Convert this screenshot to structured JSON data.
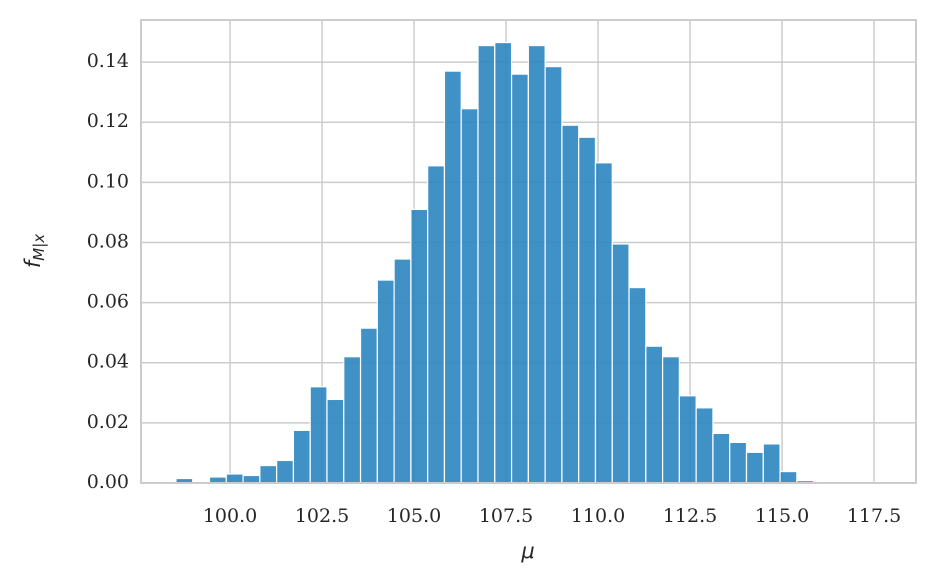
{
  "chart_data": {
    "type": "histogram",
    "xlabel": "μ",
    "ylabel": "f",
    "ylabel_sub": "M|x",
    "bins": [
      98.53,
      98.986,
      99.442,
      99.898,
      100.354,
      100.81,
      101.266,
      101.722,
      102.178,
      102.634,
      103.09,
      103.546,
      104.002,
      104.458,
      104.914,
      105.37,
      105.826,
      106.282,
      106.738,
      107.194,
      107.65,
      108.106,
      108.562,
      109.018,
      109.474,
      109.93,
      110.386,
      110.842,
      111.298,
      111.754,
      112.21,
      112.666,
      113.122,
      113.578,
      114.034,
      114.49,
      114.946,
      115.402,
      115.858,
      116.314,
      116.77,
      117.226,
      117.682,
      118.138
    ],
    "values": [
      0.0015,
      0,
      0.002,
      0.003,
      0.0025,
      0.0058,
      0.0075,
      0.0175,
      0.032,
      0.0278,
      0.042,
      0.0515,
      0.0675,
      0.0745,
      0.091,
      0.1055,
      0.137,
      0.1245,
      0.1455,
      0.1465,
      0.136,
      0.1455,
      0.1385,
      0.119,
      0.115,
      0.1065,
      0.0795,
      0.065,
      0.0455,
      0.042,
      0.029,
      0.025,
      0.0165,
      0.0135,
      0.0102,
      0.013,
      0.0038,
      0.0008,
      0.0002,
      0.0003,
      0.0003,
      0.0002,
      0.0002
    ],
    "color": "#2b86c0",
    "xlim": [
      97.58,
      118.64
    ],
    "ylim": [
      0,
      0.154
    ],
    "xticks": [
      {
        "value": 100,
        "label": "100.0"
      },
      {
        "value": 102.5,
        "label": "102.5"
      },
      {
        "value": 105,
        "label": "105.0"
      },
      {
        "value": 107.5,
        "label": "107.5"
      },
      {
        "value": 110,
        "label": "110.0"
      },
      {
        "value": 112.5,
        "label": "112.5"
      },
      {
        "value": 115,
        "label": "115.0"
      },
      {
        "value": 117.5,
        "label": "117.5"
      }
    ],
    "yticks": [
      {
        "value": 0,
        "label": "0.00"
      },
      {
        "value": 0.02,
        "label": "0.02"
      },
      {
        "value": 0.04,
        "label": "0.04"
      },
      {
        "value": 0.06,
        "label": "0.06"
      },
      {
        "value": 0.08,
        "label": "0.08"
      },
      {
        "value": 0.1,
        "label": "0.10"
      },
      {
        "value": 0.12,
        "label": "0.12"
      },
      {
        "value": 0.14,
        "label": "0.14"
      }
    ],
    "grid": true
  }
}
